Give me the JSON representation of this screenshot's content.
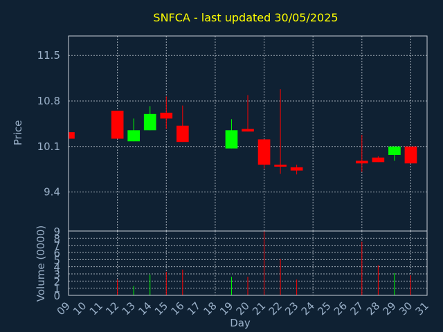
{
  "chart_data": [
    {
      "type": "candlestick",
      "title": "SNFCA - last updated 30/05/2025",
      "ylabel": "Price",
      "ylim": [
        8.8,
        11.8
      ],
      "yticks": [
        "11.5",
        "10.8",
        "10.1",
        "9.4"
      ],
      "colors": {
        "up": "#00ff00",
        "down": "#ff0000"
      },
      "candles": [
        {
          "day": 9,
          "open": 10.32,
          "high": 10.32,
          "low": 10.22,
          "close": 10.22
        },
        {
          "day": 12,
          "open": 10.65,
          "high": 10.65,
          "low": 10.22,
          "close": 10.22
        },
        {
          "day": 13,
          "open": 10.18,
          "high": 10.53,
          "low": 10.18,
          "close": 10.35
        },
        {
          "day": 14,
          "open": 10.35,
          "high": 10.72,
          "low": 10.35,
          "close": 10.6
        },
        {
          "day": 15,
          "open": 10.62,
          "high": 10.87,
          "low": 10.37,
          "close": 10.53
        },
        {
          "day": 16,
          "open": 10.42,
          "high": 10.73,
          "low": 10.17,
          "close": 10.17
        },
        {
          "day": 19,
          "open": 10.07,
          "high": 10.52,
          "low": 10.07,
          "close": 10.35
        },
        {
          "day": 20,
          "open": 10.37,
          "high": 10.89,
          "low": 10.33,
          "close": 10.33
        },
        {
          "day": 21,
          "open": 10.21,
          "high": 10.21,
          "low": 9.76,
          "close": 9.82
        },
        {
          "day": 22,
          "open": 9.82,
          "high": 10.98,
          "low": 9.68,
          "close": 9.79
        },
        {
          "day": 23,
          "open": 9.78,
          "high": 9.82,
          "low": 9.67,
          "close": 9.73
        },
        {
          "day": 27,
          "open": 9.88,
          "high": 10.28,
          "low": 9.71,
          "close": 9.84
        },
        {
          "day": 28,
          "open": 9.93,
          "high": 9.95,
          "low": 9.86,
          "close": 9.86
        },
        {
          "day": 29,
          "open": 9.97,
          "high": 10.1,
          "low": 9.88,
          "close": 10.1
        },
        {
          "day": 30,
          "open": 10.1,
          "high": 10.1,
          "low": 9.84,
          "close": 9.84
        }
      ]
    },
    {
      "type": "bar",
      "ylabel": "Volume (0000)",
      "xlabel": "Day",
      "ylim": [
        0,
        9
      ],
      "yticks": [
        "0",
        "1",
        "2",
        "3",
        "4",
        "5",
        "6",
        "7",
        "8",
        "9"
      ],
      "xlim": [
        9,
        31
      ],
      "xticks": [
        "09",
        "10",
        "11",
        "12",
        "13",
        "14",
        "15",
        "16",
        "17",
        "18",
        "19",
        "20",
        "21",
        "22",
        "23",
        "24",
        "25",
        "26",
        "27",
        "28",
        "29",
        "30",
        "31"
      ],
      "bars": [
        {
          "day": 12,
          "value": 2.2,
          "direction": "down"
        },
        {
          "day": 13,
          "value": 1.3,
          "direction": "up"
        },
        {
          "day": 14,
          "value": 2.9,
          "direction": "up"
        },
        {
          "day": 15,
          "value": 3.3,
          "direction": "down"
        },
        {
          "day": 16,
          "value": 3.6,
          "direction": "down"
        },
        {
          "day": 19,
          "value": 2.6,
          "direction": "up"
        },
        {
          "day": 20,
          "value": 2.6,
          "direction": "down"
        },
        {
          "day": 21,
          "value": 9.0,
          "direction": "down"
        },
        {
          "day": 22,
          "value": 5.1,
          "direction": "down"
        },
        {
          "day": 23,
          "value": 2.2,
          "direction": "down"
        },
        {
          "day": 27,
          "value": 7.5,
          "direction": "down"
        },
        {
          "day": 28,
          "value": 4.2,
          "direction": "down"
        },
        {
          "day": 29,
          "value": 3.1,
          "direction": "up"
        },
        {
          "day": 30,
          "value": 2.8,
          "direction": "down"
        }
      ]
    }
  ]
}
